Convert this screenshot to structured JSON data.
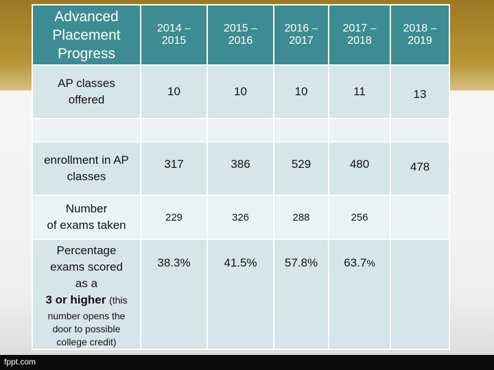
{
  "footer": {
    "credit": "fppt.com"
  },
  "table": {
    "title": [
      "Advanced",
      "Placement",
      "Progress"
    ],
    "years": [
      [
        "2014 –",
        "2015"
      ],
      [
        "2015 –",
        "2016"
      ],
      [
        "2016 –",
        "2017"
      ],
      [
        "2017 –",
        "2018"
      ],
      [
        "2018 –",
        "2019"
      ]
    ],
    "rows": {
      "ap_classes": {
        "label": [
          "AP classes",
          "offered"
        ],
        "values": [
          "10",
          "10",
          "10",
          "11",
          "13"
        ]
      },
      "enrollment": {
        "label": [
          "enrollment in AP",
          "classes"
        ],
        "values": [
          "317",
          "386",
          "529",
          "480",
          "478"
        ]
      },
      "exams": {
        "label": [
          "Number",
          "of exams taken"
        ],
        "values": [
          "229",
          "326",
          "288",
          "256",
          ""
        ]
      },
      "percentage": {
        "label": [
          "Percentage",
          "exams scored",
          "as a"
        ],
        "label_bold": "3 or higher",
        "label_paren": "(this",
        "note": [
          "number opens the",
          "door to possible",
          "college credit)"
        ],
        "values": [
          "38.3%",
          "41.5%",
          "57.8%",
          "63.7",
          ""
        ],
        "suffix_small": "%"
      }
    }
  }
}
